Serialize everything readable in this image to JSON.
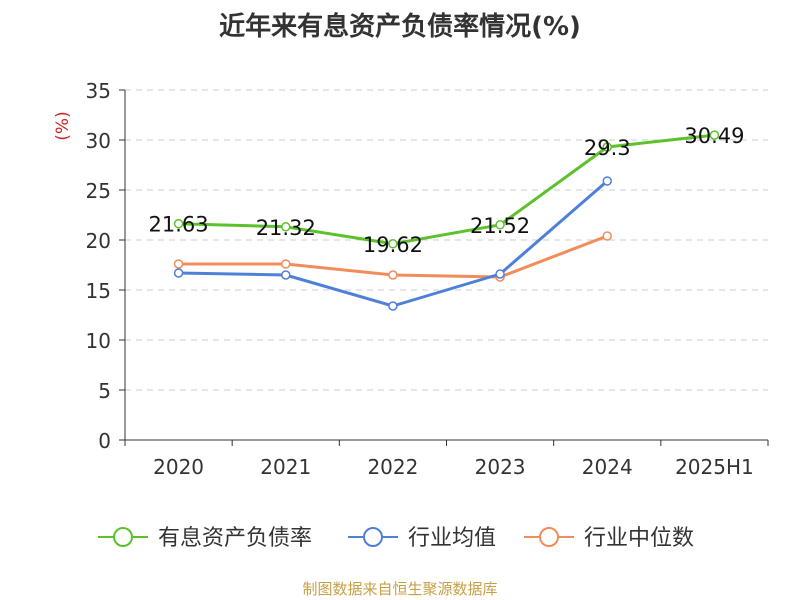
{
  "chart_data": {
    "type": "line",
    "title": "近年来有息资产负债率情况(%)",
    "ylabel": "(%)",
    "xlabel": "",
    "categories": [
      "2020",
      "2021",
      "2022",
      "2023",
      "2024",
      "2025H1"
    ],
    "ylim": [
      0,
      35
    ],
    "yticks": [
      0,
      5,
      10,
      15,
      20,
      25,
      30,
      35
    ],
    "grid": true,
    "legend_position": "bottom",
    "series": [
      {
        "name": "有息资产负债率",
        "color": "#5cc12a",
        "values": [
          21.63,
          21.32,
          19.62,
          21.52,
          29.3,
          30.49
        ],
        "labels": [
          "21.63",
          "21.32",
          "19.62",
          "21.52",
          "29.3",
          "30.49"
        ]
      },
      {
        "name": "行业均值",
        "color": "#4f80d8",
        "values": [
          16.7,
          16.5,
          13.4,
          16.6,
          25.9,
          null
        ]
      },
      {
        "name": "行业中位数",
        "color": "#f28c5a",
        "values": [
          17.6,
          17.6,
          16.5,
          16.3,
          20.4,
          null
        ]
      }
    ]
  },
  "source": "制图数据来自恒生聚源数据库",
  "colors": {
    "axis": "#333333",
    "grid": "#cccccc",
    "ylabel": "#cc2222"
  }
}
